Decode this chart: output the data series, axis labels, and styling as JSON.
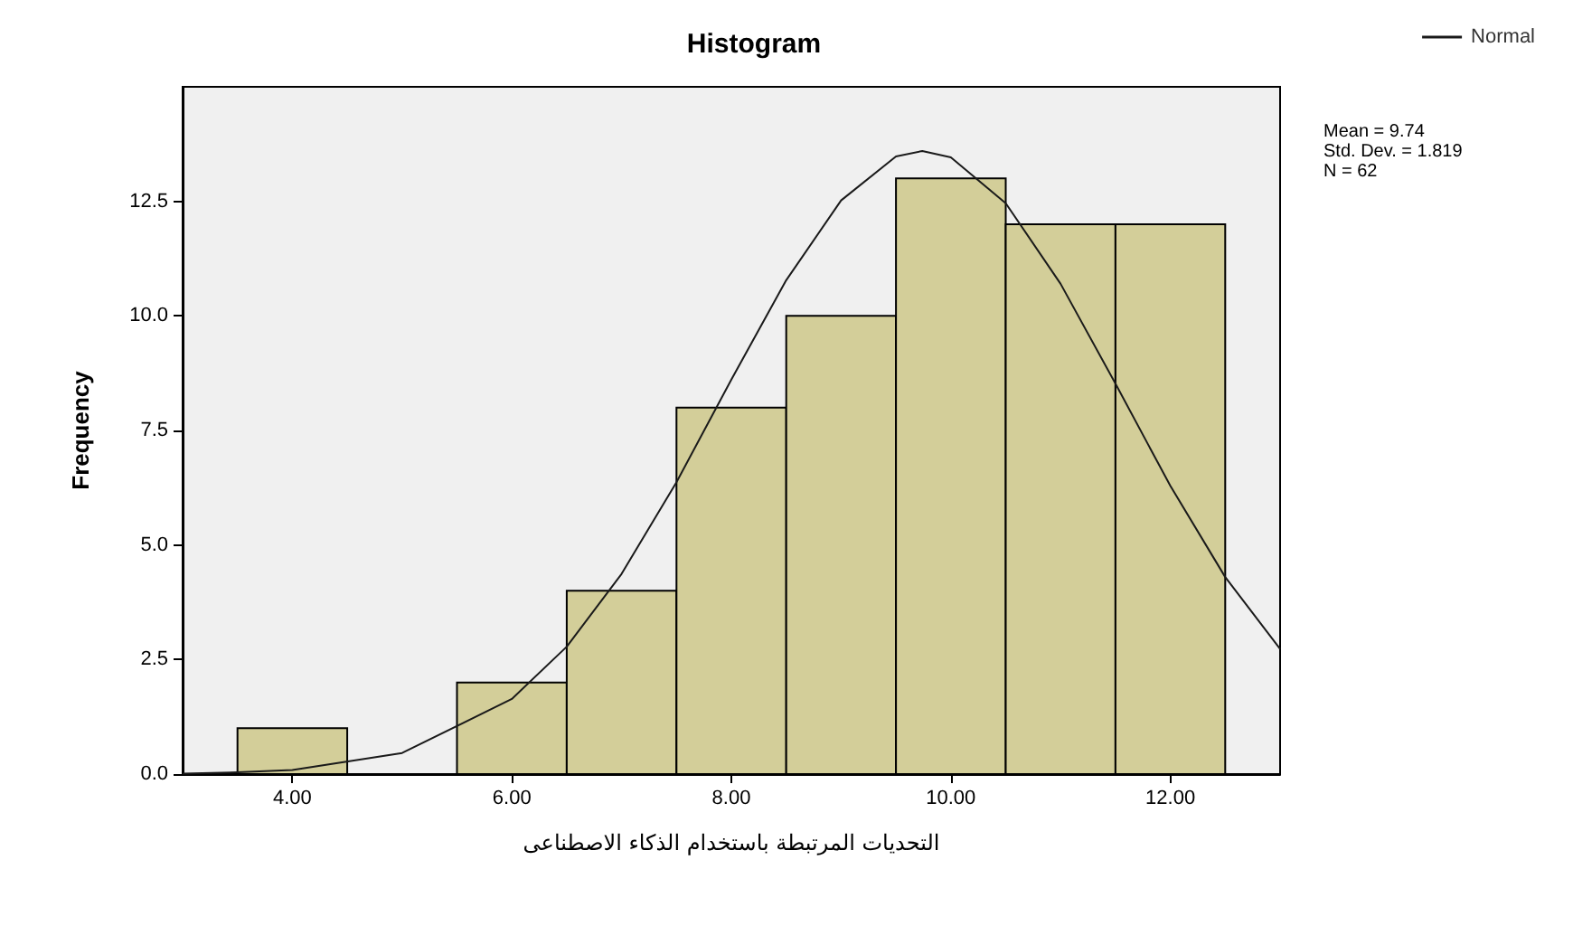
{
  "chart_data": {
    "type": "histogram",
    "title": "Histogram",
    "xlabel": "التحديات المرتبطة باستخدام الذكاء الاصطناعى",
    "ylabel": "Frequency",
    "bins": [
      3.5,
      4.5,
      5.5,
      6.5,
      7.5,
      8.5,
      9.5,
      10.5,
      11.5,
      12.5
    ],
    "values": [
      1,
      0,
      2,
      4,
      8,
      10,
      13,
      12,
      12
    ],
    "color": "#d3ce99",
    "series": [
      {
        "type": "line",
        "name": "Normal",
        "color": "#1a1a1a",
        "marker": "none",
        "x": [
          3,
          3.5,
          4,
          5,
          6,
          6.5,
          7,
          7.5,
          8,
          8.5,
          9,
          9.5,
          9.74,
          10,
          10.5,
          11,
          11.5,
          12,
          12.5,
          13
        ],
        "values": [
          0.01,
          0.04,
          0.09,
          0.46,
          1.64,
          2.78,
          4.37,
          6.37,
          8.61,
          10.78,
          12.52,
          13.48,
          13.6,
          13.46,
          12.46,
          10.7,
          8.52,
          6.29,
          4.3,
          2.73
        ]
      }
    ],
    "xlim": [
      3,
      13
    ],
    "xticks": [
      {
        "value": 4,
        "label": "4.00"
      },
      {
        "value": 6,
        "label": "6.00"
      },
      {
        "value": 8,
        "label": "8.00"
      },
      {
        "value": 10,
        "label": "10.00"
      },
      {
        "value": 12,
        "label": "12.00"
      }
    ],
    "ylim": [
      0,
      15
    ],
    "yticks": [
      {
        "value": 0,
        "label": "0.0"
      },
      {
        "value": 2.5,
        "label": "2.5"
      },
      {
        "value": 5,
        "label": "5.0"
      },
      {
        "value": 7.5,
        "label": "7.5"
      },
      {
        "value": 10,
        "label": "10.0"
      },
      {
        "value": 12.5,
        "label": "12.5"
      }
    ],
    "annotations": [
      "Mean = 9.74",
      "Std. Dev. = 1.819",
      "N = 62"
    ],
    "legend": "top right",
    "grid": false
  }
}
